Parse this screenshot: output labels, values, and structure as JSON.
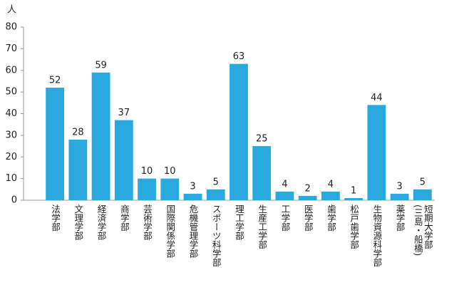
{
  "chart_data": {
    "type": "bar",
    "y_label": "人",
    "categories": [
      "法学部",
      "文理学部",
      "経済学部",
      "商学部",
      "芸術学部",
      "国際関係学部",
      "危機管理学部",
      "スポーツ科学部",
      "理工学部",
      "生産工学部",
      "工学部",
      "医学部",
      "歯学部",
      "松戸歯学部",
      "生物資源科学部",
      "薬学部",
      "短期大学部\n(三島・船橋)"
    ],
    "values": [
      52,
      28,
      59,
      37,
      10,
      10,
      3,
      5,
      63,
      25,
      4,
      2,
      4,
      1,
      44,
      3,
      5
    ],
    "color": "#29a9e0",
    "ylim": [
      0,
      80
    ],
    "yticks": [
      0,
      10,
      20,
      30,
      40,
      50,
      60,
      70,
      80
    ],
    "grid": false
  }
}
